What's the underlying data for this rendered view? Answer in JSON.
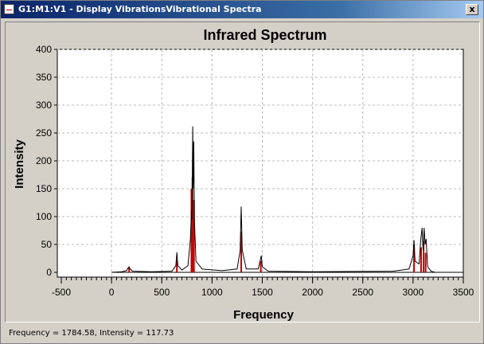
{
  "window": {
    "title": "G1:M1:V1 - Display VibrationsVibrational Spectra",
    "close_glyph": "x"
  },
  "status": {
    "text": "Frequency = 1784.58,  Intensity = 117.73"
  },
  "chart_data": {
    "type": "line",
    "title": "Infrared Spectrum",
    "xlabel": "Frequency",
    "ylabel": "Intensity",
    "xlim": [
      -500,
      3500
    ],
    "ylim": [
      0,
      400
    ],
    "x_ticks": [
      -500,
      0,
      500,
      1000,
      1500,
      2000,
      2500,
      3000,
      3500
    ],
    "y_ticks": [
      0,
      50,
      100,
      150,
      200,
      250,
      300,
      350,
      400
    ],
    "grid": true,
    "stick_color": "#c00000",
    "line_color": "#000000",
    "sticks": [
      {
        "x": 175,
        "y": 8
      },
      {
        "x": 650,
        "y": 22
      },
      {
        "x": 795,
        "y": 150
      },
      {
        "x": 805,
        "y": 170
      },
      {
        "x": 820,
        "y": 130
      },
      {
        "x": 1290,
        "y": 73
      },
      {
        "x": 1485,
        "y": 20
      },
      {
        "x": 3010,
        "y": 50
      },
      {
        "x": 3080,
        "y": 45
      },
      {
        "x": 3105,
        "y": 55
      },
      {
        "x": 3125,
        "y": 35
      }
    ],
    "spectrum": [
      {
        "x": 0,
        "y": 0
      },
      {
        "x": 100,
        "y": 1
      },
      {
        "x": 150,
        "y": 3
      },
      {
        "x": 165,
        "y": 8
      },
      {
        "x": 175,
        "y": 10
      },
      {
        "x": 185,
        "y": 6
      },
      {
        "x": 210,
        "y": 2
      },
      {
        "x": 400,
        "y": 1
      },
      {
        "x": 600,
        "y": 2
      },
      {
        "x": 640,
        "y": 12
      },
      {
        "x": 650,
        "y": 36
      },
      {
        "x": 660,
        "y": 12
      },
      {
        "x": 700,
        "y": 4
      },
      {
        "x": 760,
        "y": 12
      },
      {
        "x": 785,
        "y": 60
      },
      {
        "x": 795,
        "y": 110
      },
      {
        "x": 800,
        "y": 95
      },
      {
        "x": 808,
        "y": 262
      },
      {
        "x": 812,
        "y": 150
      },
      {
        "x": 818,
        "y": 235
      },
      {
        "x": 825,
        "y": 90
      },
      {
        "x": 840,
        "y": 20
      },
      {
        "x": 900,
        "y": 6
      },
      {
        "x": 1100,
        "y": 3
      },
      {
        "x": 1250,
        "y": 6
      },
      {
        "x": 1280,
        "y": 40
      },
      {
        "x": 1290,
        "y": 118
      },
      {
        "x": 1300,
        "y": 40
      },
      {
        "x": 1340,
        "y": 6
      },
      {
        "x": 1460,
        "y": 6
      },
      {
        "x": 1480,
        "y": 22
      },
      {
        "x": 1490,
        "y": 30
      },
      {
        "x": 1500,
        "y": 10
      },
      {
        "x": 1560,
        "y": 2
      },
      {
        "x": 2000,
        "y": 1
      },
      {
        "x": 2800,
        "y": 2
      },
      {
        "x": 2960,
        "y": 6
      },
      {
        "x": 3000,
        "y": 30
      },
      {
        "x": 3010,
        "y": 58
      },
      {
        "x": 3020,
        "y": 20
      },
      {
        "x": 3060,
        "y": 15
      },
      {
        "x": 3075,
        "y": 55
      },
      {
        "x": 3090,
        "y": 80
      },
      {
        "x": 3100,
        "y": 40
      },
      {
        "x": 3110,
        "y": 80
      },
      {
        "x": 3120,
        "y": 50
      },
      {
        "x": 3130,
        "y": 60
      },
      {
        "x": 3145,
        "y": 10
      },
      {
        "x": 3180,
        "y": 2
      },
      {
        "x": 3220,
        "y": 0
      }
    ]
  }
}
